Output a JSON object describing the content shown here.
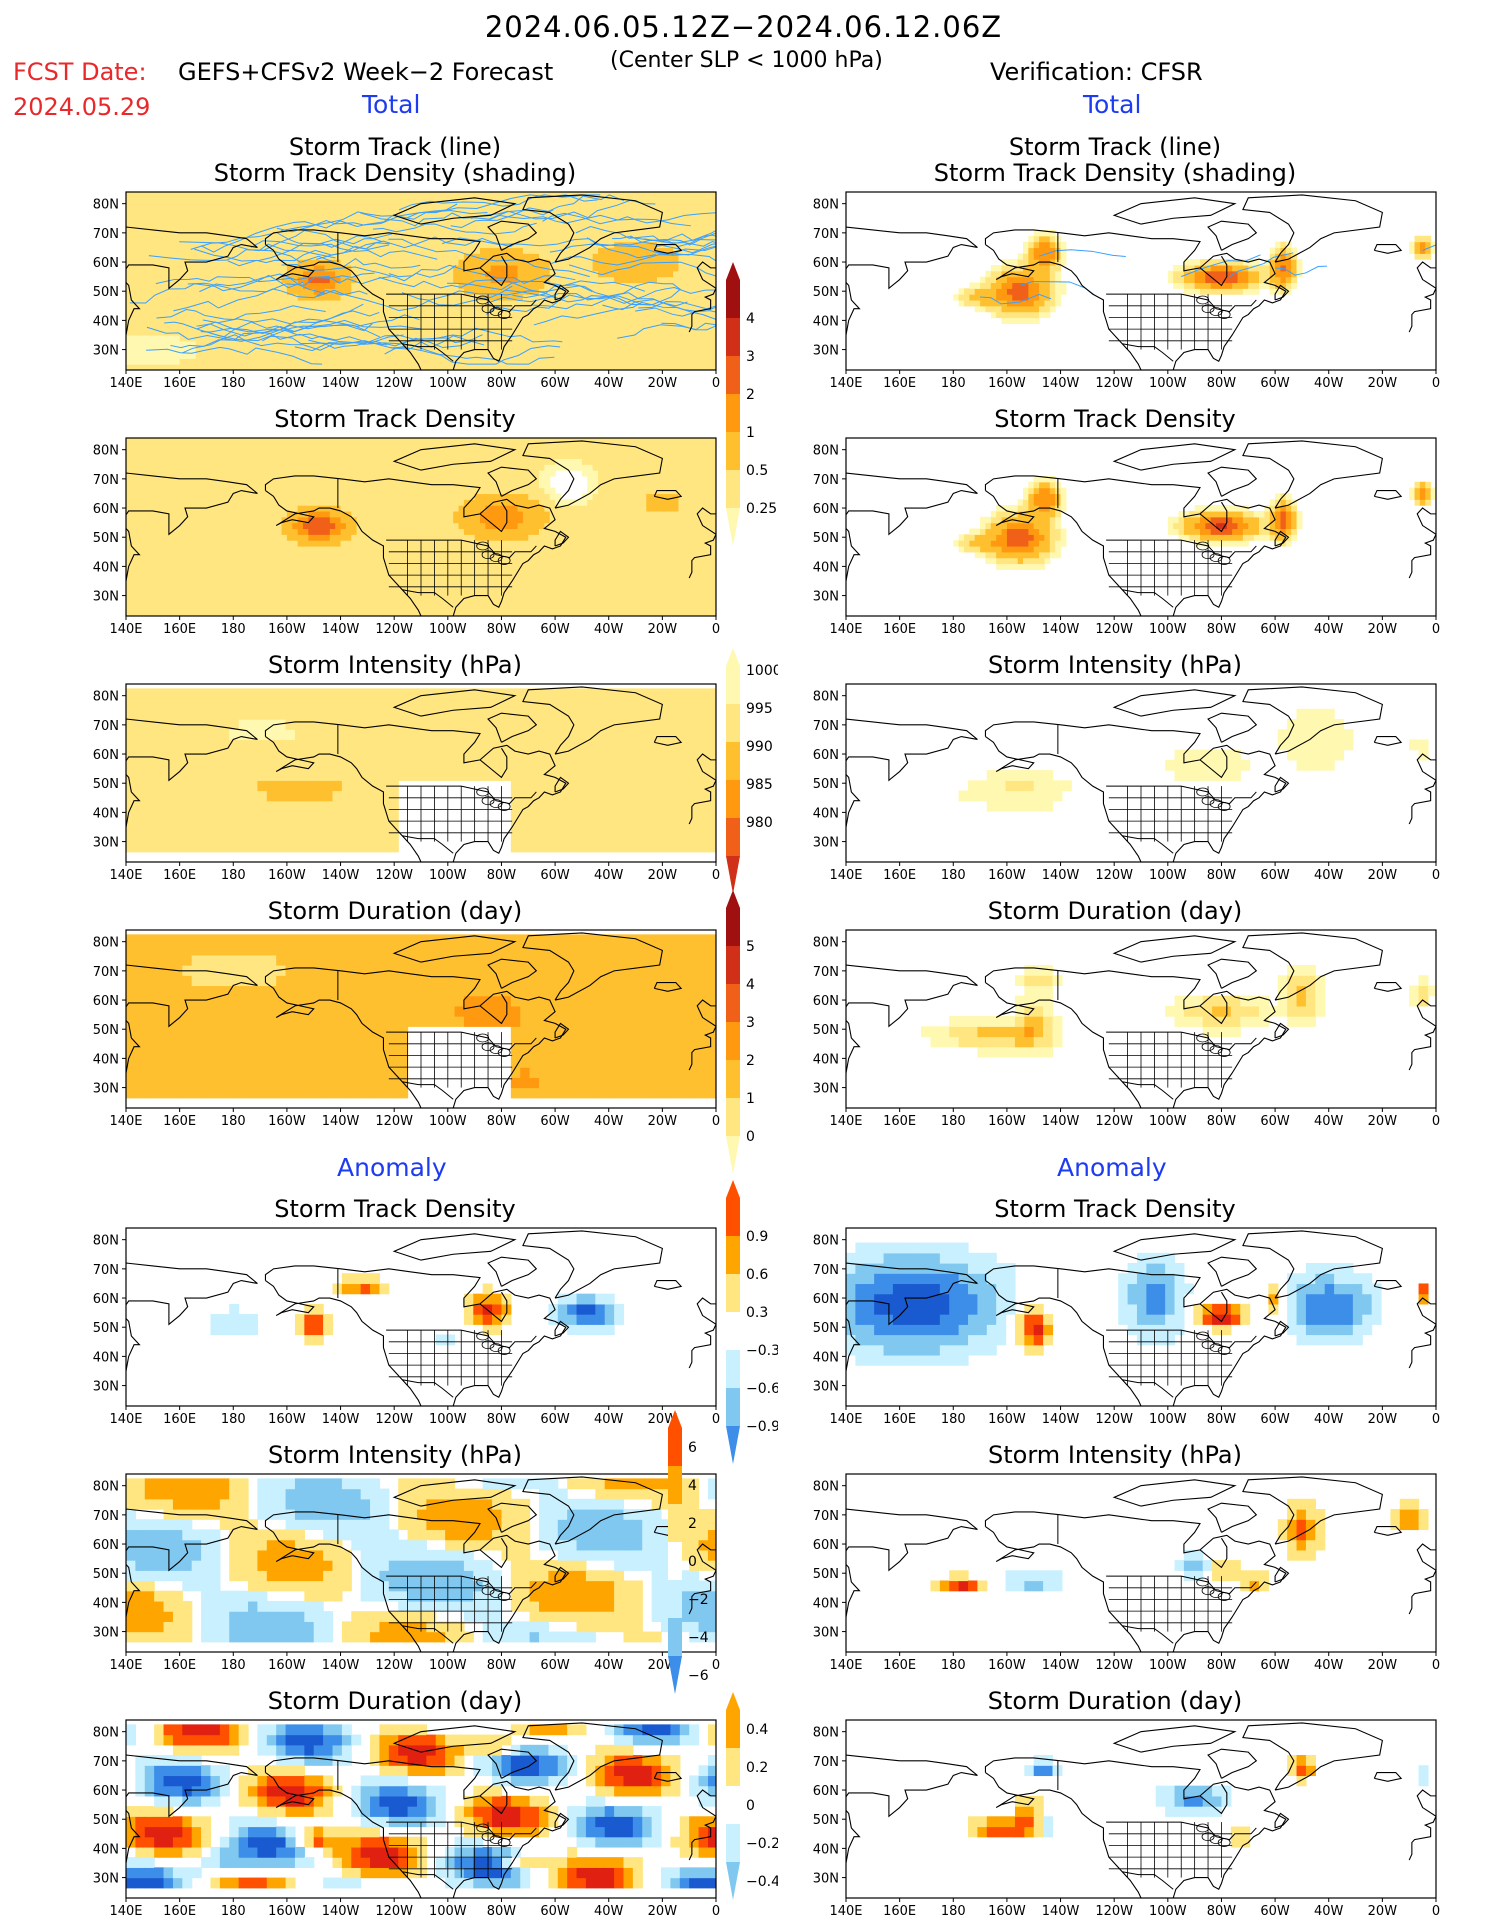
{
  "header": {
    "title": "2024.06.05.12Z−2024.06.12.06Z",
    "fcst_label": "FCST Date:",
    "fcst_model": "GEFS+CFSv2 Week−2 Forecast",
    "fcst_date": "2024.05.29",
    "slp_note": "(Center SLP < 1000 hPa)",
    "verification": "Verification: CFSR"
  },
  "sections": {
    "total_left": "Total",
    "total_right": "Total",
    "anomaly_left": "Anomaly",
    "anomaly_right": "Anomaly"
  },
  "panel_titles": {
    "track_line": "Storm Track (line)",
    "track_shading": "Storm Track Density (shading)",
    "density": "Storm Track Density",
    "intensity": "Storm Intensity (hPa)",
    "duration": "Storm Duration (day)"
  },
  "axes": {
    "lon_ticks": [
      "140E",
      "160E",
      "180",
      "160W",
      "140W",
      "120W",
      "100W",
      "80W",
      "60W",
      "40W",
      "20W",
      "0"
    ],
    "lat_ticks": [
      "80N",
      "70N",
      "60N",
      "50N",
      "40N",
      "30N"
    ]
  },
  "colorbars": {
    "density_total": [
      "4",
      "3",
      "2",
      "1",
      "0.5",
      "0.25"
    ],
    "intensity_total": [
      "1000",
      "995",
      "990",
      "985",
      "980"
    ],
    "duration_total": [
      "5",
      "4",
      "3",
      "2",
      "1",
      "0"
    ],
    "density_anom": [
      "0.9",
      "0.6",
      "0.3",
      "−0.3",
      "−0.6",
      "−0.9"
    ],
    "intensity_anom": [
      "6",
      "4",
      "2",
      "0",
      "−2",
      "−4",
      "−6"
    ],
    "duration_anom": [
      "0.4",
      "0.2",
      "0",
      "−0.2",
      "−0.4"
    ]
  },
  "colors": {
    "total_scale": [
      "#fff8b0",
      "#ffe680",
      "#ffc030",
      "#ff9a10",
      "#f06018",
      "#d03018",
      "#a01010"
    ],
    "anom_pos": [
      "#ffe680",
      "#ffa500",
      "#ff5000",
      "#e02010"
    ],
    "anom_neg": [
      "#c8f0ff",
      "#80c8f0",
      "#3c8ee8",
      "#1a5ad0"
    ],
    "section_blue": "#1d3cf0",
    "fcst_red": "#e8282a",
    "track_line": "#3aa0ff"
  }
}
